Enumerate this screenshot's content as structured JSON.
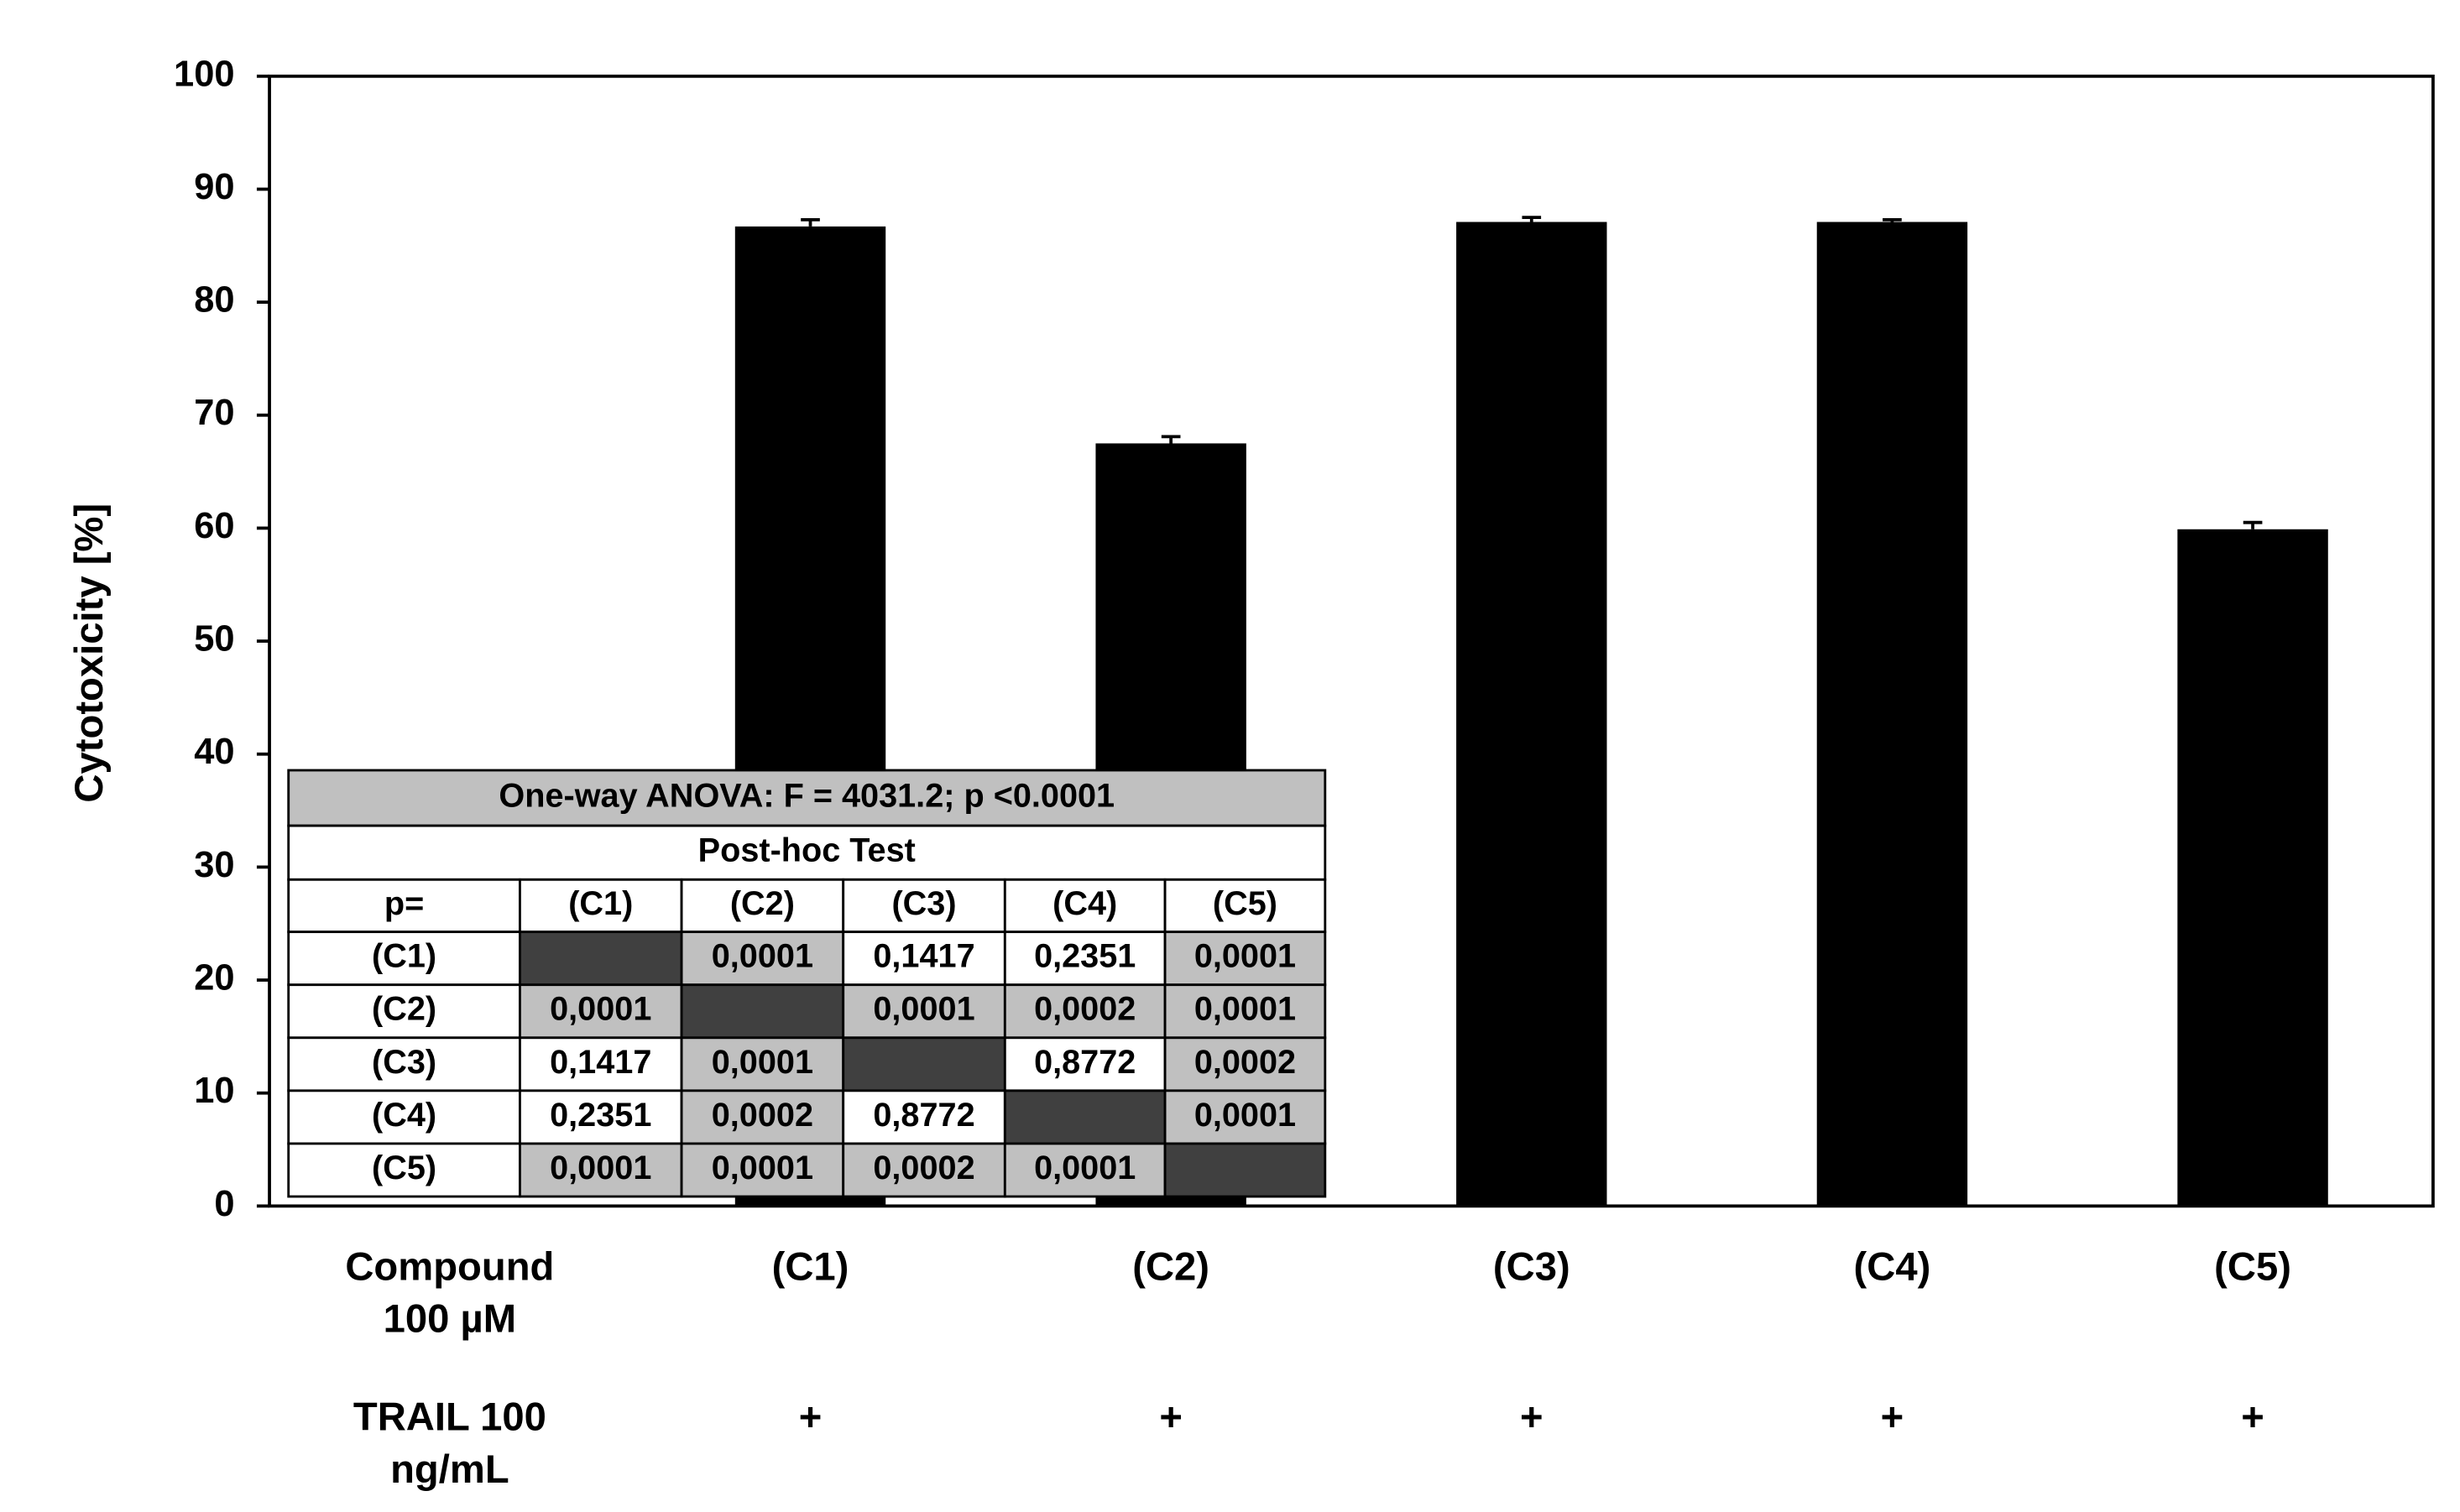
{
  "chart_data": {
    "type": "bar",
    "y_label": "Cytotoxicity [%]",
    "categories": [
      "(C1)",
      "(C2)",
      "(C3)",
      "(C4)",
      "(C5)"
    ],
    "values": [
      86.7,
      67.5,
      87.1,
      87.1,
      59.9
    ],
    "errors": [
      0.6,
      0.6,
      0.4,
      0.2,
      0.6
    ],
    "color": "#000000",
    "ylim": [
      0,
      100
    ],
    "yticks": [
      0,
      10,
      20,
      30,
      40,
      50,
      60,
      70,
      80,
      90,
      100
    ],
    "row_labels": [
      [
        "Compound",
        "100 µM"
      ],
      [
        "TRAIL  100",
        "ng/mL"
      ]
    ],
    "trail": [
      "+",
      "+",
      "+",
      "+",
      "+"
    ],
    "table": {
      "title": "One-way ANOVA:  F = 4031.2; p <0.0001",
      "subtitle": "Post-hoc Test",
      "header": [
        "p=",
        "(C1)",
        "(C2)",
        "(C3)",
        "(C4)",
        "(C5)"
      ],
      "rows": [
        [
          "(C1)",
          null,
          "0,0001",
          "0,1417",
          "0,2351",
          "0,0001"
        ],
        [
          "(C2)",
          "0,0001",
          null,
          "0,0001",
          "0,0002",
          "0,0001"
        ],
        [
          "(C3)",
          "0,1417",
          "0,0001",
          null,
          "0,8772",
          "0,0002"
        ],
        [
          "(C4)",
          "0,2351",
          "0,0002",
          "0,8772",
          null,
          "0,0001"
        ],
        [
          "(C5)",
          "0,0001",
          "0,0001",
          "0,0002",
          "0,0001",
          null
        ]
      ],
      "cell_fill": [
        [
          "#ffffff",
          "#404040",
          "#c0c0c0",
          "#ffffff",
          "#ffffff",
          "#c0c0c0"
        ],
        [
          "#ffffff",
          "#c0c0c0",
          "#404040",
          "#c0c0c0",
          "#c0c0c0",
          "#c0c0c0"
        ],
        [
          "#ffffff",
          "#ffffff",
          "#c0c0c0",
          "#404040",
          "#ffffff",
          "#c0c0c0"
        ],
        [
          "#ffffff",
          "#ffffff",
          "#c0c0c0",
          "#ffffff",
          "#404040",
          "#c0c0c0"
        ],
        [
          "#ffffff",
          "#c0c0c0",
          "#c0c0c0",
          "#c0c0c0",
          "#c0c0c0",
          "#404040"
        ]
      ]
    }
  }
}
